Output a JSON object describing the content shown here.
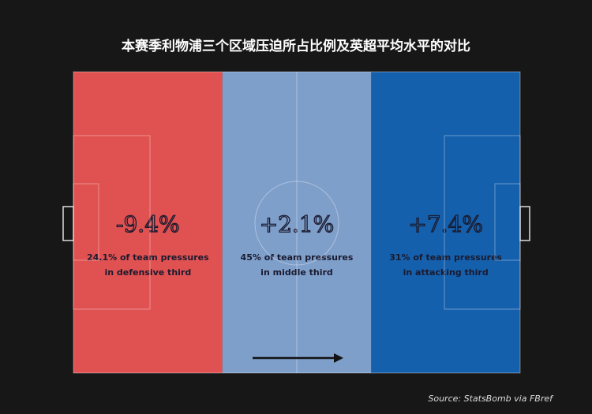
{
  "title": "本赛季利物浦三个区域压迫所占比例及英超平均水平的对比",
  "zones": [
    {
      "change": "-9.4%",
      "line1": "24.1% of team pressures",
      "line2": "in defensive third",
      "color": "#e05252"
    },
    {
      "change": "+2.1%",
      "line1": "45% of team pressures",
      "line2": "in middle third",
      "color": "#7f9fcb"
    },
    {
      "change": "+7.4%",
      "line1": "31% of team pressures",
      "line2": "in attacking third",
      "color": "#1560ad"
    }
  ],
  "source": "Source: StatsBomb via FBref"
}
